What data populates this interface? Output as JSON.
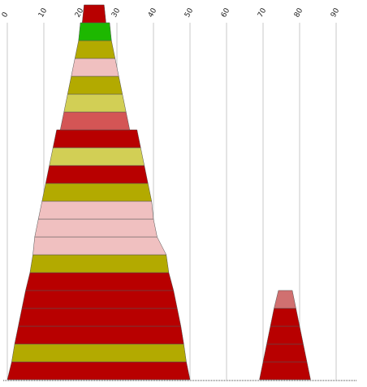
{
  "chart_data": {
    "type": "bar",
    "orientation": "stacked-layers",
    "x_ticks": [
      "0",
      "10",
      "20",
      "30",
      "40",
      "50",
      "60",
      "70",
      "80",
      "90"
    ],
    "xlim": [
      0,
      95
    ],
    "grid": "vertical",
    "colors": {
      "red": "#B80000",
      "green": "#1DB800",
      "olive": "#B3AA00",
      "pink": "#F0C0C0",
      "yellow": "#D2CF55",
      "salmon": "#D45555",
      "rose": "#D07070"
    },
    "stacks": [
      {
        "name": "",
        "layers": [
          {
            "x0": 0,
            "x1": 50,
            "top_x0": 1.2,
            "top_x1": 49,
            "color": "red"
          },
          {
            "x0": 1.2,
            "x1": 49,
            "top_x0": 2,
            "top_x1": 48.3,
            "color": "olive"
          },
          {
            "x0": 2,
            "x1": 48.3,
            "top_x0": 3,
            "top_x1": 47.5,
            "color": "red"
          },
          {
            "x0": 3,
            "x1": 47.5,
            "top_x0": 4,
            "top_x1": 46.5,
            "color": "red"
          },
          {
            "x0": 4,
            "x1": 46.5,
            "top_x0": 5,
            "top_x1": 45.5,
            "color": "red"
          },
          {
            "x0": 5,
            "x1": 45.5,
            "top_x0": 6.2,
            "top_x1": 44.2,
            "color": "red"
          },
          {
            "x0": 6.2,
            "x1": 44.2,
            "top_x0": 7,
            "top_x1": 43.5,
            "color": "olive"
          },
          {
            "x0": 7,
            "x1": 43.5,
            "top_x0": 7.5,
            "top_x1": 41,
            "color": "pink"
          },
          {
            "x0": 7.5,
            "x1": 41,
            "top_x0": 8.5,
            "top_x1": 40,
            "color": "pink"
          },
          {
            "x0": 8.5,
            "x1": 40,
            "top_x0": 9.5,
            "top_x1": 39.5,
            "color": "pink"
          },
          {
            "x0": 9.5,
            "x1": 39.5,
            "top_x0": 10.5,
            "top_x1": 38.5,
            "color": "olive"
          },
          {
            "x0": 10.5,
            "x1": 38.5,
            "top_x0": 11.5,
            "top_x1": 37.5,
            "color": "red"
          },
          {
            "x0": 11.5,
            "x1": 37.5,
            "top_x0": 12.5,
            "top_x1": 36.5,
            "color": "yellow"
          },
          {
            "x0": 12.5,
            "x1": 36.5,
            "top_x0": 13.5,
            "top_x1": 35.5,
            "color": "red"
          },
          {
            "x0": 14.5,
            "x1": 33.5,
            "top_x0": 15.5,
            "top_x1": 32.5,
            "color": "salmon"
          },
          {
            "x0": 15.5,
            "x1": 32.5,
            "top_x0": 16.5,
            "top_x1": 31.5,
            "color": "yellow"
          },
          {
            "x0": 16.5,
            "x1": 31.5,
            "top_x0": 17.5,
            "top_x1": 30.5,
            "color": "olive"
          },
          {
            "x0": 17.5,
            "x1": 30.5,
            "top_x0": 18.5,
            "top_x1": 29.5,
            "color": "pink"
          },
          {
            "x0": 18.5,
            "x1": 29.5,
            "top_x0": 19.5,
            "top_x1": 28.5,
            "color": "olive"
          },
          {
            "x0": 19.5,
            "x1": 28.5,
            "top_x0": 20,
            "top_x1": 28,
            "color": "green"
          },
          {
            "x0": 20.5,
            "x1": 27,
            "top_x0": 21,
            "top_x1": 26.5,
            "color": "red"
          }
        ]
      },
      {
        "name": "",
        "layers": [
          {
            "x0": 69,
            "x1": 83,
            "top_x0": 70,
            "top_x1": 82,
            "color": "red"
          },
          {
            "x0": 70,
            "x1": 82,
            "top_x0": 71,
            "top_x1": 81,
            "color": "red"
          },
          {
            "x0": 71,
            "x1": 81,
            "top_x0": 72,
            "top_x1": 80,
            "color": "red"
          },
          {
            "x0": 72,
            "x1": 80,
            "top_x0": 73,
            "top_x1": 79,
            "color": "red"
          },
          {
            "x0": 73,
            "x1": 79,
            "top_x0": 74.2,
            "top_x1": 78,
            "color": "rose"
          }
        ]
      }
    ]
  }
}
